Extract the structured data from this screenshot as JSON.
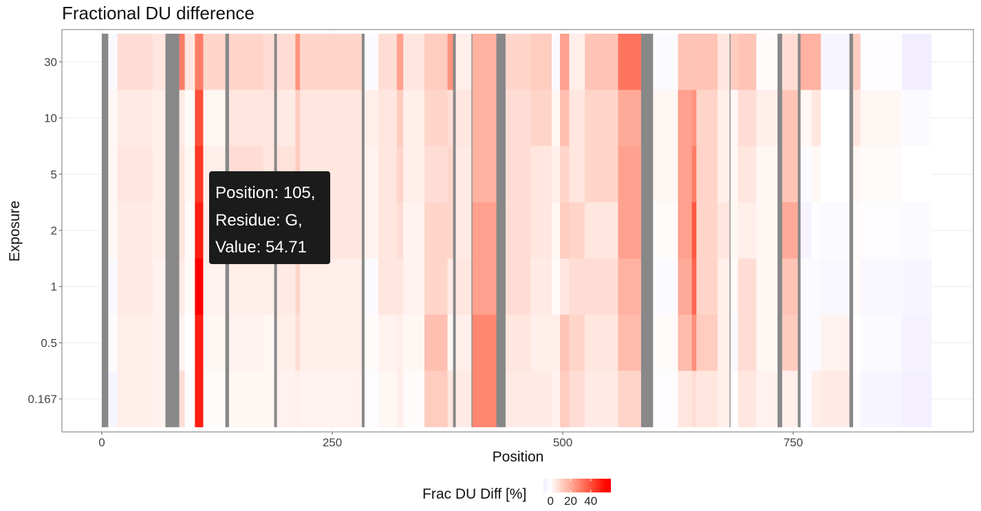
{
  "chart_data": {
    "type": "heatmap",
    "title": "Fractional DU difference",
    "xlabel": "Position",
    "ylabel": "Exposure",
    "x_ticks": [
      "0",
      "250",
      "500",
      "750"
    ],
    "x_tick_values": [
      0,
      250,
      500,
      750
    ],
    "xlim": [
      0,
      900
    ],
    "y_categories": [
      "30",
      "10",
      "5",
      "2",
      "1",
      "0.5",
      "0.167"
    ],
    "grid": true,
    "legend": {
      "title": "Frac DU Diff [%]",
      "placement": "bottom",
      "ticks": [
        "0",
        "20",
        "40"
      ],
      "tick_values": [
        0,
        20,
        40
      ],
      "range": [
        -7,
        60
      ],
      "low_color": "#ece6ff",
      "mid_color": "#ffffff",
      "high_color": "#ff0000",
      "missing_color": "#888888"
    },
    "segments_note_order": "start, end, values for exposures 30,10,5,2,1,0.5,0.167 (null = missing)",
    "segments": [
      [
        0,
        7,
        null
      ],
      [
        7,
        17,
        [
          -3,
          2,
          2,
          2,
          -3,
          1,
          -4
        ]
      ],
      [
        17,
        55,
        [
          8,
          5,
          6,
          5,
          5,
          4,
          4
        ]
      ],
      [
        55,
        69,
        [
          6,
          4,
          4,
          4,
          3,
          3,
          3
        ]
      ],
      [
        69,
        84,
        null
      ],
      [
        84,
        90,
        [
          30,
          5,
          6,
          6,
          5,
          3,
          8
        ]
      ],
      [
        90,
        101,
        [
          6,
          1,
          2,
          1,
          1,
          0,
          -1
        ]
      ],
      [
        101,
        110,
        [
          30,
          40,
          45,
          50,
          55,
          50,
          50
        ]
      ],
      [
        110,
        134,
        [
          10,
          2,
          4,
          4,
          3,
          2,
          1
        ]
      ],
      [
        134,
        138,
        null
      ],
      [
        138,
        175,
        [
          10,
          6,
          8,
          6,
          4,
          3,
          2
        ]
      ],
      [
        175,
        187,
        [
          8,
          6,
          6,
          4,
          4,
          2,
          2
        ]
      ],
      [
        187,
        190,
        null
      ],
      [
        190,
        210,
        [
          8,
          5,
          7,
          6,
          5,
          4,
          3
        ]
      ],
      [
        210,
        215,
        [
          25,
          12,
          12,
          12,
          10,
          8,
          4
        ]
      ],
      [
        215,
        282,
        [
          10,
          6,
          6,
          6,
          4,
          4,
          3
        ]
      ],
      [
        282,
        285,
        null
      ],
      [
        285,
        300,
        [
          -2,
          4,
          3,
          3,
          -2,
          1,
          -1
        ]
      ],
      [
        300,
        320,
        [
          8,
          6,
          6,
          6,
          6,
          3,
          2
        ]
      ],
      [
        320,
        327,
        [
          22,
          12,
          10,
          8,
          6,
          4,
          4
        ]
      ],
      [
        327,
        350,
        [
          6,
          4,
          4,
          3,
          3,
          2,
          1
        ]
      ],
      [
        350,
        375,
        [
          12,
          10,
          8,
          10,
          10,
          15,
          12
        ]
      ],
      [
        375,
        381,
        [
          25,
          8,
          10,
          10,
          5,
          2,
          6
        ]
      ],
      [
        381,
        384,
        null
      ],
      [
        384,
        401,
        [
          4,
          6,
          5,
          5,
          6,
          4,
          5
        ]
      ],
      [
        401,
        402,
        null
      ],
      [
        402,
        428,
        [
          18,
          18,
          18,
          22,
          22,
          28,
          28
        ]
      ],
      [
        428,
        438,
        null
      ],
      [
        438,
        465,
        [
          10,
          8,
          8,
          8,
          8,
          6,
          5
        ]
      ],
      [
        465,
        488,
        [
          12,
          10,
          6,
          6,
          5,
          4,
          5
        ]
      ],
      [
        488,
        497,
        [
          -2,
          2,
          4,
          2,
          1,
          4,
          3
        ]
      ],
      [
        497,
        507,
        [
          22,
          15,
          10,
          12,
          6,
          14,
          12
        ]
      ],
      [
        507,
        524,
        [
          4,
          6,
          6,
          10,
          8,
          10,
          8
        ]
      ],
      [
        524,
        560,
        [
          14,
          10,
          10,
          6,
          8,
          6,
          5
        ]
      ],
      [
        560,
        585,
        [
          32,
          20,
          22,
          22,
          18,
          16,
          10
        ]
      ],
      [
        585,
        598,
        null
      ],
      [
        598,
        625,
        [
          -2,
          2,
          2,
          1,
          -2,
          1,
          -1
        ]
      ],
      [
        625,
        640,
        [
          14,
          22,
          22,
          22,
          20,
          16,
          6
        ]
      ],
      [
        640,
        645,
        [
          14,
          25,
          30,
          38,
          35,
          26,
          8
        ]
      ],
      [
        645,
        668,
        [
          14,
          10,
          10,
          10,
          10,
          12,
          6
        ]
      ],
      [
        668,
        681,
        [
          6,
          4,
          4,
          6,
          4,
          4,
          4
        ]
      ],
      [
        681,
        682,
        null
      ],
      [
        682,
        690,
        [
          12,
          2,
          2,
          2,
          1,
          -2,
          0
        ]
      ],
      [
        690,
        710,
        [
          14,
          8,
          6,
          4,
          8,
          8,
          6
        ]
      ],
      [
        710,
        733,
        [
          1,
          4,
          2,
          2,
          2,
          2,
          3
        ]
      ],
      [
        733,
        738,
        null
      ],
      [
        738,
        755,
        [
          8,
          14,
          14,
          20,
          14,
          12,
          4
        ]
      ],
      [
        755,
        758,
        null
      ],
      [
        758,
        770,
        [
          18,
          2,
          -2,
          -5,
          -2,
          -2,
          -2
        ]
      ],
      [
        770,
        780,
        [
          18,
          6,
          2,
          -1,
          -2,
          -2,
          4
        ]
      ],
      [
        780,
        811,
        [
          -4,
          0,
          0,
          -2,
          -3,
          3,
          5
        ]
      ],
      [
        811,
        815,
        null
      ],
      [
        815,
        823,
        [
          12,
          6,
          2,
          1,
          1,
          0,
          -1
        ]
      ],
      [
        823,
        868,
        [
          -1,
          2,
          1,
          -1,
          -3,
          -2,
          -4
        ]
      ],
      [
        868,
        900,
        [
          -7,
          -2,
          0,
          -2,
          -4,
          -5,
          -6
        ]
      ]
    ],
    "tooltip": {
      "line1": "Position: 105,",
      "line2": "Residue: G,",
      "line3": "Value: 54.71"
    }
  }
}
